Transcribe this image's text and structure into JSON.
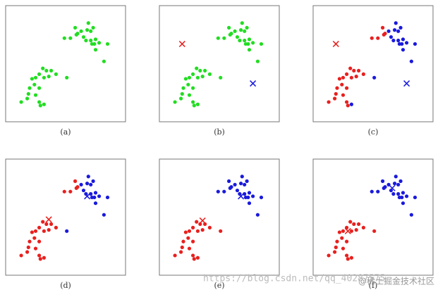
{
  "chart_data": [
    {
      "type": "scatter",
      "caption": "(a)",
      "xlim": [
        0,
        100
      ],
      "ylim": [
        0,
        100
      ],
      "series": [
        {
          "color": "#22dd22",
          "marker": "o",
          "x": [
            58,
            60,
            59,
            63,
            69,
            68,
            71,
            73,
            65,
            67,
            71,
            74,
            75,
            78,
            85,
            54,
            49,
            75,
            82,
            72,
            31,
            34,
            38,
            28,
            25,
            22,
            32,
            36,
            24,
            20,
            28,
            19,
            25,
            13,
            18,
            28,
            32,
            29,
            51,
            42
          ],
          "y": [
            81,
            76,
            75,
            78,
            85,
            79,
            78,
            81,
            73,
            70,
            70,
            67,
            71,
            68,
            67,
            72,
            72,
            62,
            52,
            67,
            46,
            44,
            44,
            41,
            38,
            37,
            38,
            39,
            32,
            29,
            29,
            24,
            23,
            17,
            20,
            17,
            15,
            14,
            38,
            41
          ]
        }
      ]
    },
    {
      "type": "scatter",
      "caption": "(b)",
      "xlim": [
        0,
        100
      ],
      "ylim": [
        0,
        100
      ],
      "series": [
        {
          "color": "#22dd22",
          "marker": "o",
          "x": [
            58,
            60,
            59,
            63,
            69,
            68,
            71,
            73,
            65,
            67,
            71,
            74,
            75,
            78,
            85,
            54,
            49,
            75,
            82,
            72,
            31,
            34,
            38,
            28,
            25,
            22,
            32,
            36,
            24,
            20,
            28,
            19,
            25,
            13,
            18,
            28,
            32,
            29,
            51,
            42
          ],
          "y": [
            81,
            76,
            75,
            78,
            85,
            79,
            78,
            81,
            73,
            70,
            70,
            67,
            71,
            68,
            67,
            72,
            72,
            62,
            52,
            67,
            46,
            44,
            44,
            41,
            38,
            37,
            38,
            39,
            32,
            29,
            29,
            24,
            23,
            17,
            20,
            17,
            15,
            14,
            38,
            41
          ]
        },
        {
          "color": "#e8201e",
          "marker": "x",
          "x": [
            19
          ],
          "y": [
            67
          ]
        },
        {
          "color": "#1a1adc",
          "marker": "x",
          "x": [
            78
          ],
          "y": [
            33
          ]
        }
      ]
    },
    {
      "type": "scatter",
      "caption": "(c)",
      "xlim": [
        0,
        100
      ],
      "ylim": [
        0,
        100
      ],
      "series": [
        {
          "color": "#e8201e",
          "marker": "o",
          "x": [
            58,
            60,
            59,
            54,
            49,
            31,
            34,
            38,
            28,
            25,
            22,
            32,
            36,
            24,
            20,
            28,
            19,
            25,
            13,
            18,
            28,
            29,
            42
          ],
          "y": [
            81,
            76,
            75,
            72,
            72,
            46,
            44,
            44,
            41,
            38,
            37,
            38,
            39,
            32,
            29,
            29,
            24,
            23,
            17,
            20,
            17,
            14,
            41
          ]
        },
        {
          "color": "#1a1adc",
          "marker": "o",
          "x": [
            63,
            69,
            68,
            71,
            73,
            65,
            67,
            71,
            74,
            75,
            78,
            85,
            75,
            82,
            72,
            32,
            51
          ],
          "y": [
            78,
            85,
            79,
            78,
            81,
            73,
            70,
            70,
            67,
            71,
            68,
            67,
            62,
            52,
            67,
            15,
            38
          ]
        },
        {
          "color": "#e8201e",
          "marker": "x",
          "x": [
            19
          ],
          "y": [
            67
          ]
        },
        {
          "color": "#1a1adc",
          "marker": "x",
          "x": [
            78
          ],
          "y": [
            33
          ]
        }
      ]
    },
    {
      "type": "scatter",
      "caption": "(d)",
      "xlim": [
        0,
        100
      ],
      "ylim": [
        0,
        100
      ],
      "series": [
        {
          "color": "#e8201e",
          "marker": "o",
          "x": [
            58,
            60,
            59,
            54,
            49,
            31,
            34,
            38,
            28,
            25,
            22,
            32,
            36,
            24,
            20,
            28,
            19,
            25,
            13,
            18,
            28,
            32,
            29,
            42
          ],
          "y": [
            81,
            76,
            75,
            72,
            72,
            46,
            44,
            44,
            41,
            38,
            37,
            38,
            39,
            32,
            29,
            29,
            24,
            23,
            17,
            20,
            17,
            15,
            14,
            41
          ]
        },
        {
          "color": "#1a1adc",
          "marker": "o",
          "x": [
            63,
            69,
            68,
            71,
            73,
            65,
            67,
            71,
            74,
            75,
            78,
            85,
            75,
            82,
            72,
            51
          ],
          "y": [
            78,
            85,
            79,
            78,
            81,
            73,
            70,
            70,
            67,
            71,
            68,
            67,
            62,
            52,
            67,
            38
          ]
        },
        {
          "color": "#e8201e",
          "marker": "x",
          "x": [
            36
          ],
          "y": [
            48
          ]
        },
        {
          "color": "#1a1adc",
          "marker": "x",
          "x": [
            68
          ],
          "y": [
            68
          ]
        }
      ]
    },
    {
      "type": "scatter",
      "caption": "(e)",
      "xlim": [
        0,
        100
      ],
      "ylim": [
        0,
        100
      ],
      "series": [
        {
          "color": "#e8201e",
          "marker": "o",
          "x": [
            31,
            34,
            38,
            28,
            25,
            22,
            32,
            36,
            24,
            20,
            28,
            19,
            25,
            13,
            18,
            28,
            32,
            29,
            51,
            42
          ],
          "y": [
            46,
            44,
            44,
            41,
            38,
            37,
            38,
            39,
            32,
            29,
            29,
            24,
            23,
            17,
            20,
            17,
            15,
            14,
            38,
            41
          ]
        },
        {
          "color": "#1a1adc",
          "marker": "o",
          "x": [
            58,
            60,
            59,
            63,
            69,
            68,
            71,
            73,
            65,
            67,
            71,
            74,
            75,
            78,
            85,
            54,
            49,
            75,
            82,
            72
          ],
          "y": [
            81,
            76,
            75,
            78,
            85,
            79,
            78,
            81,
            73,
            70,
            70,
            67,
            71,
            68,
            67,
            72,
            72,
            62,
            52,
            67
          ]
        },
        {
          "color": "#e8201e",
          "marker": "x",
          "x": [
            36
          ],
          "y": [
            47
          ]
        },
        {
          "color": "#1a1adc",
          "marker": "x",
          "x": [
            68
          ],
          "y": [
            68
          ]
        }
      ]
    },
    {
      "type": "scatter",
      "caption": "(f)",
      "xlim": [
        0,
        100
      ],
      "ylim": [
        0,
        100
      ],
      "series": [
        {
          "color": "#e8201e",
          "marker": "o",
          "x": [
            31,
            34,
            38,
            28,
            25,
            22,
            32,
            36,
            24,
            20,
            28,
            19,
            25,
            13,
            18,
            28,
            32,
            29,
            51,
            42
          ],
          "y": [
            46,
            44,
            44,
            41,
            38,
            37,
            38,
            39,
            32,
            29,
            29,
            24,
            23,
            17,
            20,
            17,
            15,
            14,
            38,
            41
          ]
        },
        {
          "color": "#1a1adc",
          "marker": "o",
          "x": [
            58,
            60,
            59,
            63,
            69,
            68,
            71,
            73,
            65,
            67,
            71,
            74,
            75,
            78,
            85,
            54,
            49,
            75,
            82,
            72
          ],
          "y": [
            81,
            76,
            75,
            78,
            85,
            79,
            78,
            81,
            73,
            70,
            70,
            67,
            71,
            68,
            67,
            72,
            72,
            62,
            52,
            67
          ]
        },
        {
          "color": "#e8201e",
          "marker": "x",
          "x": [
            29
          ],
          "y": [
            38
          ]
        },
        {
          "color": "#1a1adc",
          "marker": "x",
          "x": [
            66
          ],
          "y": [
            75
          ]
        }
      ]
    }
  ],
  "watermark": {
    "url": "https://blog.csdn.net/qq_40287575",
    "site": "@稀土掘金技术社区"
  }
}
